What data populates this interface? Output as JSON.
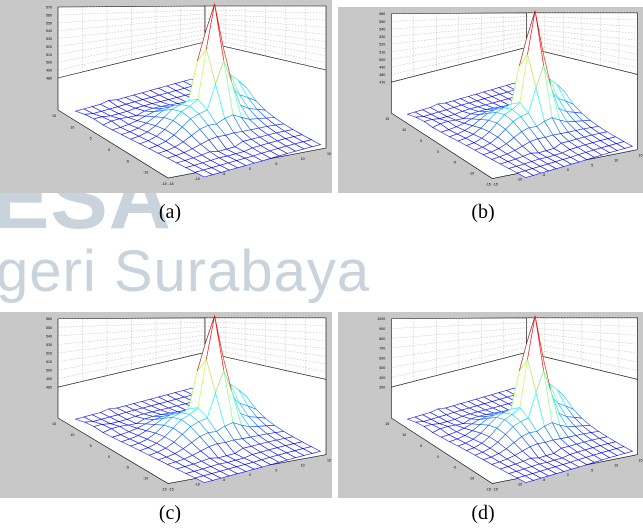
{
  "watermark": {
    "line1": "ESA",
    "line2": "geri Surabaya"
  },
  "figures": [
    {
      "caption": "(a)",
      "z_ticks": [
        "570",
        "560",
        "550",
        "540",
        "530",
        "520",
        "510",
        "500",
        "490",
        "480"
      ],
      "x_ticks": [
        "15",
        "10",
        "5",
        "0",
        "-5",
        "-10",
        "-15"
      ],
      "y_ticks": [
        "-15",
        "-10",
        "-5",
        "0",
        "5",
        "10",
        "15"
      ]
    },
    {
      "caption": "(b)",
      "z_ticks": [
        "560",
        "550",
        "540",
        "530",
        "520",
        "510",
        "500",
        "490",
        "480",
        "470"
      ],
      "x_ticks": [
        "15",
        "10",
        "5",
        "0",
        "-5",
        "-10",
        "-15"
      ],
      "y_ticks": [
        "-15",
        "-10",
        "-5",
        "0",
        "5",
        "10",
        "15"
      ]
    },
    {
      "caption": "(c)",
      "z_ticks": [
        "560",
        "550",
        "540",
        "530",
        "520",
        "510",
        "500",
        "490",
        "480"
      ],
      "x_ticks": [
        "15",
        "10",
        "5",
        "0",
        "-5",
        "-10",
        "-15"
      ],
      "y_ticks": [
        "-15",
        "-10",
        "-5",
        "0",
        "5",
        "10",
        "15"
      ]
    },
    {
      "caption": "(d)",
      "z_ticks": [
        "1000",
        "900",
        "800",
        "700",
        "600",
        "500",
        "400",
        "300"
      ],
      "x_ticks": [
        "15",
        "10",
        "5",
        "0",
        "-5",
        "-10",
        "-15"
      ],
      "y_ticks": [
        "-15",
        "-10",
        "-5",
        "0",
        "5",
        "10",
        "15"
      ]
    }
  ]
}
